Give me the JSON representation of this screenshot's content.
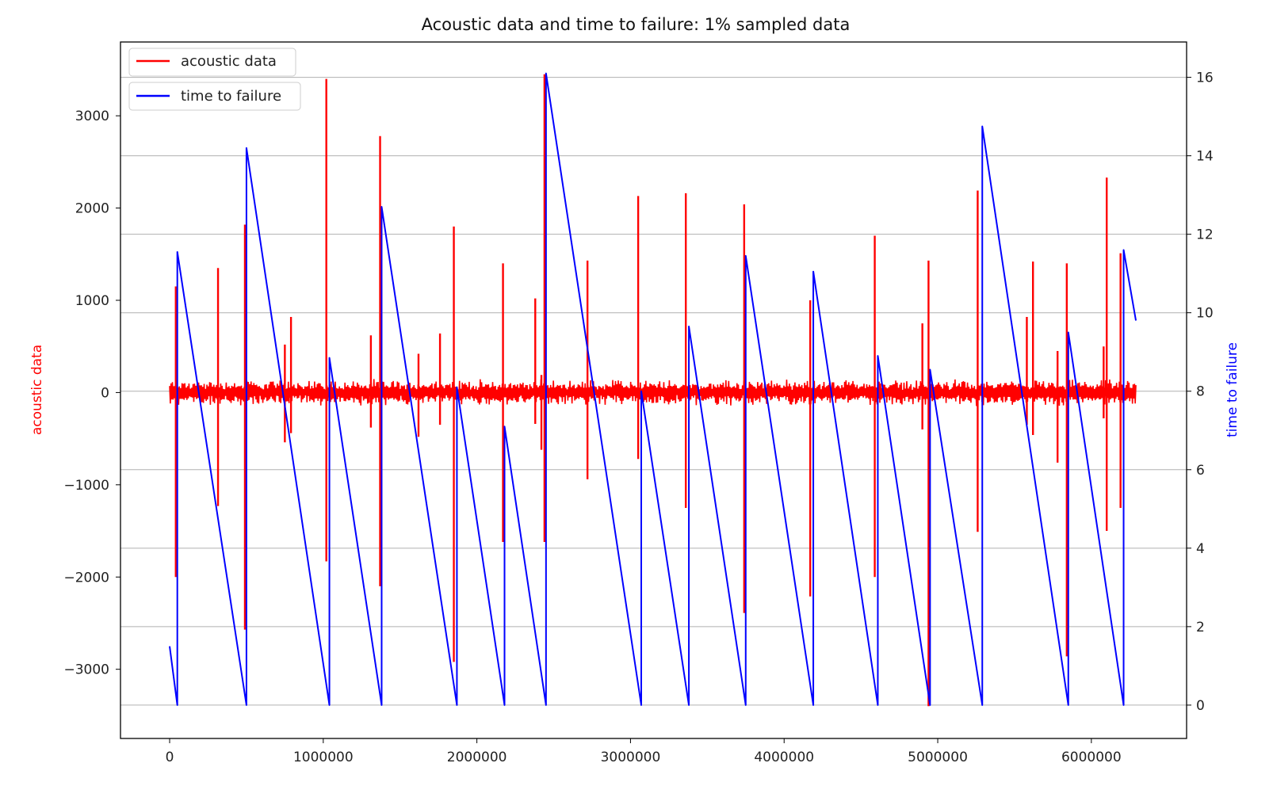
{
  "chart_data": {
    "type": "line",
    "title": "Acoustic data and time to failure: 1% sampled data",
    "x_ticks": [
      0,
      1000000,
      2000000,
      3000000,
      4000000,
      5000000,
      6000000
    ],
    "x_tick_labels": [
      "0",
      "1000000",
      "2000000",
      "3000000",
      "4000000",
      "5000000",
      "6000000"
    ],
    "xlim": [
      -320000,
      6620000
    ],
    "left_axis": {
      "label": "acoustic data",
      "color": "#ff0000",
      "ylim": [
        -3750,
        3800
      ],
      "ticks": [
        3000,
        2000,
        1000,
        0,
        -1000,
        -2000,
        -3000
      ],
      "tick_labels": [
        "3000",
        "2000",
        "1000",
        "0",
        "−1000",
        "−2000",
        "−3000"
      ]
    },
    "right_axis": {
      "label": "time to failure",
      "color": "#0000ff",
      "ylim": [
        -0.85,
        16.9
      ],
      "ticks": [
        0,
        2,
        4,
        6,
        8,
        10,
        12,
        14,
        16
      ],
      "tick_labels": [
        "0",
        "2",
        "4",
        "6",
        "8",
        "10",
        "12",
        "14",
        "16"
      ]
    },
    "grid": "right-axis horizontal",
    "legend": {
      "placement": "top-left",
      "entries": [
        {
          "label": "acoustic data",
          "color": "#ff0000"
        },
        {
          "label": "time to failure",
          "color": "#0000ff"
        }
      ]
    },
    "series": [
      {
        "name": "time to failure",
        "color": "#0000ff",
        "axis": "right",
        "x": [
          0,
          50000,
          50000,
          500000,
          500000,
          1040000,
          1040000,
          1380000,
          1380000,
          1870000,
          1870000,
          2180000,
          2180000,
          2450000,
          2450000,
          3070000,
          3070000,
          3380000,
          3380000,
          3750000,
          3750000,
          4190000,
          4190000,
          4610000,
          4610000,
          4950000,
          4950000,
          5290000,
          5290000,
          5850000,
          5850000,
          6210000,
          6210000,
          6290000
        ],
        "y": [
          1.5,
          0,
          11.55,
          0,
          14.2,
          0,
          8.85,
          0,
          12.7,
          0,
          8.1,
          0,
          7.1,
          0,
          16.1,
          0,
          8.0,
          0,
          9.65,
          0,
          11.45,
          0,
          11.05,
          0,
          8.9,
          0,
          8.55,
          0,
          14.75,
          0,
          9.5,
          0,
          11.6,
          9.8
        ]
      },
      {
        "name": "acoustic data",
        "color": "#ff0000",
        "axis": "left",
        "baseline_noise": 120,
        "spikes": [
          {
            "x": 40000,
            "max": 1150,
            "min": -2000
          },
          {
            "x": 315000,
            "max": 1350,
            "min": -1230
          },
          {
            "x": 490000,
            "max": 1820,
            "min": -2570
          },
          {
            "x": 750000,
            "max": 520,
            "min": -540
          },
          {
            "x": 790000,
            "max": 820,
            "min": -440
          },
          {
            "x": 1020000,
            "max": 3400,
            "min": -1830
          },
          {
            "x": 1310000,
            "max": 620,
            "min": -380
          },
          {
            "x": 1370000,
            "max": 2780,
            "min": -2100
          },
          {
            "x": 1620000,
            "max": 420,
            "min": -480
          },
          {
            "x": 1760000,
            "max": 640,
            "min": -350
          },
          {
            "x": 1850000,
            "max": 1800,
            "min": -2920
          },
          {
            "x": 2170000,
            "max": 1400,
            "min": -1620
          },
          {
            "x": 2380000,
            "max": 1020,
            "min": -340
          },
          {
            "x": 2420000,
            "max": 190,
            "min": -620
          },
          {
            "x": 2440000,
            "max": 3450,
            "min": -1620
          },
          {
            "x": 2720000,
            "max": 1430,
            "min": -940
          },
          {
            "x": 3050000,
            "max": 2130,
            "min": -720
          },
          {
            "x": 3360000,
            "max": 2160,
            "min": -1250
          },
          {
            "x": 3740000,
            "max": 2040,
            "min": -2390
          },
          {
            "x": 4170000,
            "max": 1000,
            "min": -2210
          },
          {
            "x": 4590000,
            "max": 1700,
            "min": -2000
          },
          {
            "x": 4900000,
            "max": 750,
            "min": -400
          },
          {
            "x": 4940000,
            "max": 1430,
            "min": -3400
          },
          {
            "x": 5260000,
            "max": 2190,
            "min": -1510
          },
          {
            "x": 5580000,
            "max": 820,
            "min": -350
          },
          {
            "x": 5620000,
            "max": 1420,
            "min": -460
          },
          {
            "x": 5780000,
            "max": 450,
            "min": -760
          },
          {
            "x": 5840000,
            "max": 1400,
            "min": -2860
          },
          {
            "x": 6080000,
            "max": 500,
            "min": -280
          },
          {
            "x": 6100000,
            "max": 2330,
            "min": -1500
          },
          {
            "x": 6190000,
            "max": 1510,
            "min": -1250
          }
        ]
      }
    ]
  }
}
